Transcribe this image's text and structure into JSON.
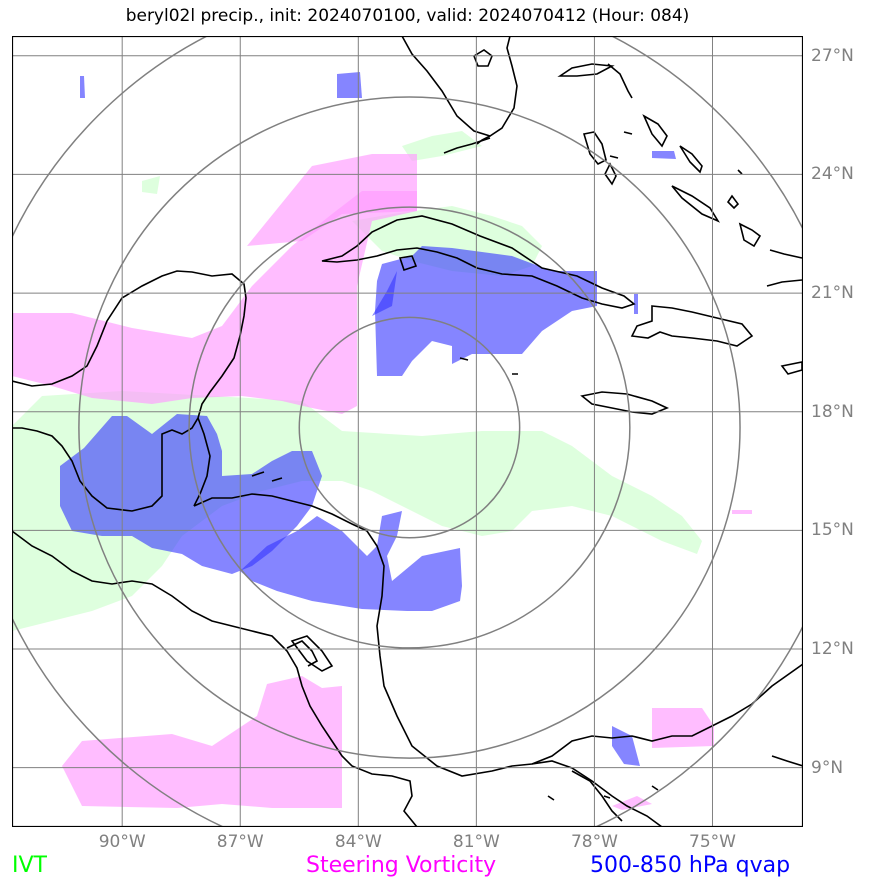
{
  "title": "beryl02l precip., init: 2024070100, valid: 2024070412 (Hour: 084)",
  "lat_ticks": [
    "27°N",
    "24°N",
    "21°N",
    "18°N",
    "15°N",
    "12°N",
    "9°N"
  ],
  "lon_ticks": [
    "90°W",
    "87°W",
    "84°W",
    "81°W",
    "78°W",
    "75°W"
  ],
  "legend": {
    "ivt": {
      "label": "IVT",
      "color": "#00ff00"
    },
    "vorticity": {
      "label": "Steering Vorticity",
      "color": "#ff00ff"
    },
    "qvap": {
      "label": "500-850 hPa qvap",
      "color": "#0000ff"
    }
  },
  "map": {
    "extent": {
      "lon_min": -92.8,
      "lon_max": -72.7,
      "lat_min": 7.5,
      "lat_max": 27.5
    },
    "gridline_color": "#808080",
    "ring_color": "#808080",
    "storm_center": {
      "lon": -82.7,
      "lat": 17.6
    },
    "range_ring_radii_deg": [
      2.8,
      5.6,
      8.4,
      11.2
    ],
    "fields": {
      "ivt": {
        "color": "#ccffcc",
        "opacity": 0.65
      },
      "vorticity": {
        "color": "#ff99ff",
        "opacity": 0.65
      },
      "qvap": {
        "color": "#3333ff",
        "opacity": 0.6
      }
    }
  }
}
